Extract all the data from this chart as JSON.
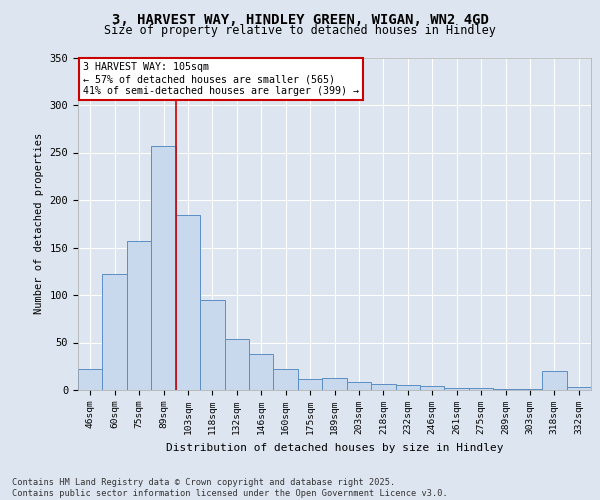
{
  "title_line1": "3, HARVEST WAY, HINDLEY GREEN, WIGAN, WN2 4GD",
  "title_line2": "Size of property relative to detached houses in Hindley",
  "xlabel": "Distribution of detached houses by size in Hindley",
  "ylabel": "Number of detached properties",
  "categories": [
    "46sqm",
    "60sqm",
    "75sqm",
    "89sqm",
    "103sqm",
    "118sqm",
    "132sqm",
    "146sqm",
    "160sqm",
    "175sqm",
    "189sqm",
    "203sqm",
    "218sqm",
    "232sqm",
    "246sqm",
    "261sqm",
    "275sqm",
    "289sqm",
    "303sqm",
    "318sqm",
    "332sqm"
  ],
  "values": [
    22,
    122,
    157,
    257,
    184,
    95,
    54,
    38,
    22,
    12,
    13,
    8,
    6,
    5,
    4,
    2,
    2,
    1,
    1,
    20,
    3
  ],
  "bar_color": "#c9d9ed",
  "bar_edge_color": "#5b8ec4",
  "annotation_line1": "3 HARVEST WAY: 105sqm",
  "annotation_line2": "← 57% of detached houses are smaller (565)",
  "annotation_line3": "41% of semi-detached houses are larger (399) →",
  "vline_x": 3.5,
  "vline_color": "#cc0000",
  "annotation_box_color": "#ffffff",
  "annotation_box_edge": "#cc0000",
  "footer_text": "Contains HM Land Registry data © Crown copyright and database right 2025.\nContains public sector information licensed under the Open Government Licence v3.0.",
  "bg_color": "#dde6f0",
  "plot_bg_color": "#dde6f0",
  "ylim": [
    0,
    350
  ],
  "yticks": [
    0,
    50,
    100,
    150,
    200,
    250,
    300,
    350
  ]
}
